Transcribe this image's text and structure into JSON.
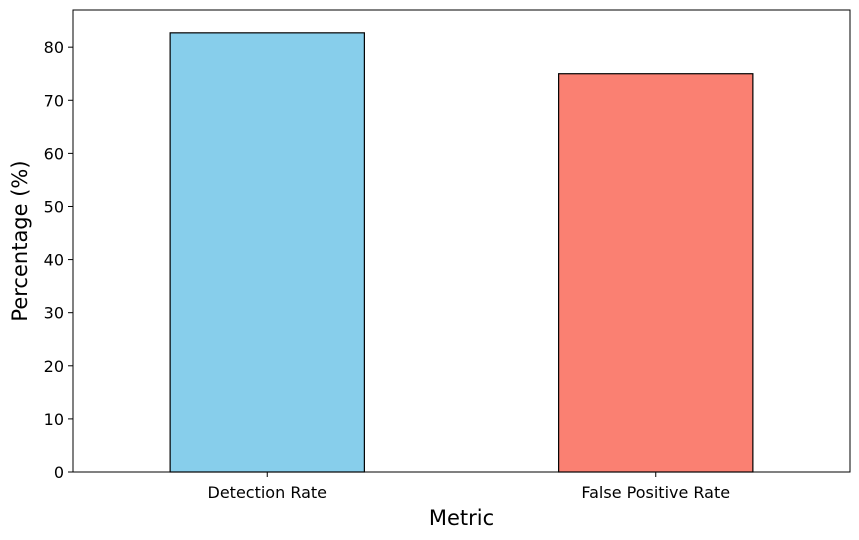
{
  "chart_data": {
    "type": "bar",
    "title": "",
    "xlabel": "Metric",
    "ylabel": "Percentage (%)",
    "categories": [
      "Detection Rate",
      "False Positive Rate"
    ],
    "values": [
      82.7,
      75.0
    ],
    "colors": [
      "#87CEEB",
      "#FA8072"
    ],
    "edge_color": "#000000",
    "ylim": [
      0,
      87
    ],
    "yticks": [
      0,
      10,
      20,
      30,
      40,
      50,
      60,
      70,
      80
    ],
    "grid": false,
    "legend": "none"
  }
}
